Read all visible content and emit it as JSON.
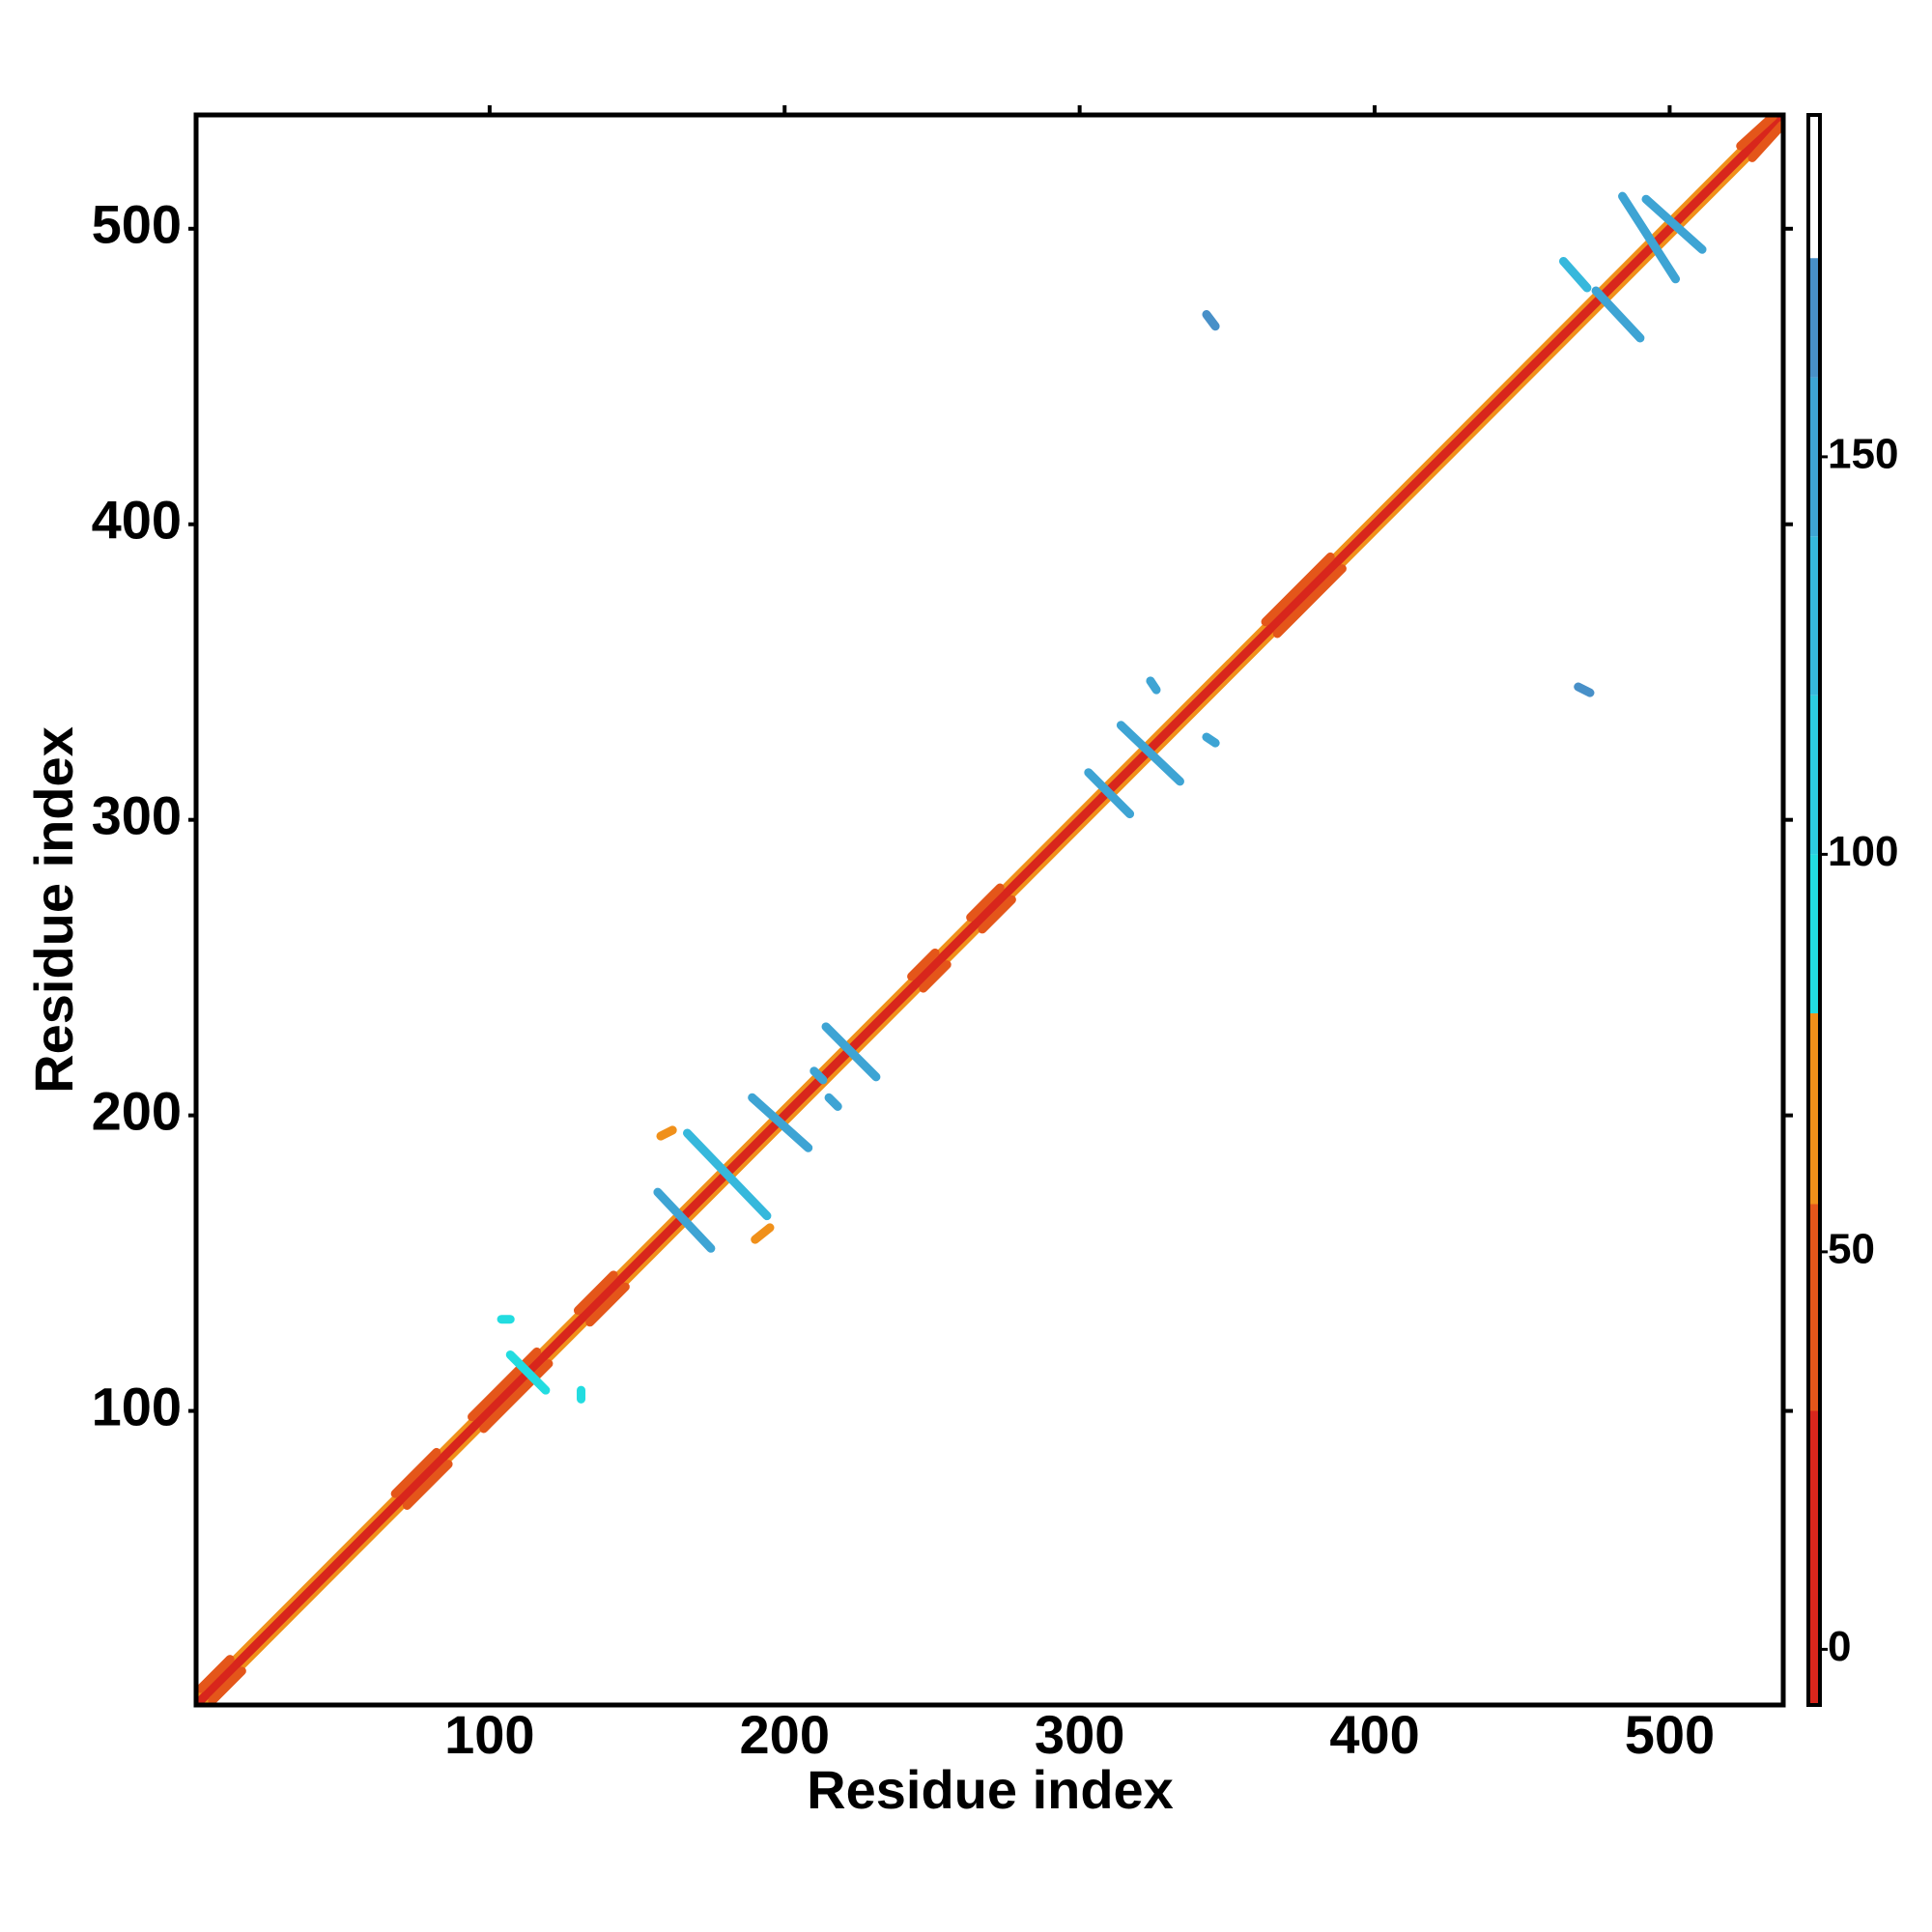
{
  "chart_data": {
    "type": "heatmap",
    "x_label": "Residue index",
    "y_label": "Residue index",
    "xlim": [
      0.5,
      538.5
    ],
    "ylim": [
      0.5,
      538.5
    ],
    "xticks": [
      100,
      200,
      300,
      400,
      500
    ],
    "yticks": [
      100,
      200,
      300,
      400,
      500
    ],
    "clim": [
      -7,
      193
    ],
    "cticks": [
      0,
      50,
      100,
      150
    ],
    "colormap": [
      {
        "value": -7,
        "color": "#d8261c"
      },
      {
        "value": 30,
        "color": "#e4561a"
      },
      {
        "value": 56,
        "color": "#f0901a"
      },
      {
        "value": 80,
        "color": "#22dce0"
      },
      {
        "value": 100,
        "color": "#2ccce0"
      },
      {
        "value": 120,
        "color": "#36b8dc"
      },
      {
        "value": 140,
        "color": "#3ea4d4"
      },
      {
        "value": 160,
        "color": "#4890c8"
      },
      {
        "value": 175,
        "color": "#ffffff"
      }
    ],
    "contacts": [
      {
        "x": [
          1,
          536
        ],
        "y": [
          3,
          538
        ],
        "value": 65
      },
      {
        "x": [
          3,
          538
        ],
        "y": [
          1,
          536
        ],
        "value": 65
      },
      {
        "x": [
          1,
          538
        ],
        "y": [
          1,
          538
        ],
        "value": 5
      },
      {
        "x": [
          2,
          12
        ],
        "y": [
          6,
          16
        ],
        "value": 40
      },
      {
        "x": [
          6,
          16
        ],
        "y": [
          2,
          12
        ],
        "value": 40
      },
      {
        "x": [
          68,
          82
        ],
        "y": [
          72,
          86
        ],
        "value": 40
      },
      {
        "x": [
          72,
          86
        ],
        "y": [
          68,
          82
        ],
        "value": 40
      },
      {
        "x": [
          94,
          116
        ],
        "y": [
          98,
          120
        ],
        "value": 40
      },
      {
        "x": [
          98,
          120
        ],
        "y": [
          94,
          116
        ],
        "value": 40
      },
      {
        "x": [
          130,
          142
        ],
        "y": [
          134,
          146
        ],
        "value": 40
      },
      {
        "x": [
          134,
          146
        ],
        "y": [
          130,
          142
        ],
        "value": 40
      },
      {
        "x": [
          243,
          251
        ],
        "y": [
          247,
          255
        ],
        "value": 40
      },
      {
        "x": [
          247,
          255
        ],
        "y": [
          243,
          251
        ],
        "value": 40
      },
      {
        "x": [
          263,
          273
        ],
        "y": [
          267,
          277
        ],
        "value": 40
      },
      {
        "x": [
          267,
          277
        ],
        "y": [
          263,
          273
        ],
        "value": 40
      },
      {
        "x": [
          363,
          385
        ],
        "y": [
          367,
          389
        ],
        "value": 40
      },
      {
        "x": [
          367,
          389
        ],
        "y": [
          363,
          385
        ],
        "value": 40
      },
      {
        "x": [
          524,
          535
        ],
        "y": [
          528,
          538
        ],
        "value": 40
      },
      {
        "x": [
          528,
          538
        ],
        "y": [
          524,
          535
        ],
        "value": 40
      },
      {
        "x": [
          107,
          119
        ],
        "y": [
          119,
          107
        ],
        "value": 95
      },
      {
        "x": [
          104,
          107
        ],
        "y": [
          131,
          131
        ],
        "value": 95
      },
      {
        "x": [
          131,
          131
        ],
        "y": [
          104,
          107
        ],
        "value": 95
      },
      {
        "x": [
          157,
          175
        ],
        "y": [
          174,
          155
        ],
        "value": 145
      },
      {
        "x": [
          167,
          194
        ],
        "y": [
          194,
          166
        ],
        "value": 135
      },
      {
        "x": [
          189,
          208
        ],
        "y": [
          206,
          189
        ],
        "value": 140
      },
      {
        "x": [
          214,
          231
        ],
        "y": [
          230,
          213
        ],
        "value": 140
      },
      {
        "x": [
          210,
          213
        ],
        "y": [
          215,
          212
        ],
        "value": 155
      },
      {
        "x": [
          215,
          218
        ],
        "y": [
          206,
          203
        ],
        "value": 155
      },
      {
        "x": [
          303,
          317
        ],
        "y": [
          316,
          302
        ],
        "value": 140
      },
      {
        "x": [
          314,
          334
        ],
        "y": [
          332,
          313
        ],
        "value": 145
      },
      {
        "x": [
          324,
          326
        ],
        "y": [
          347,
          344
        ],
        "value": 150
      },
      {
        "x": [
          343,
          346
        ],
        "y": [
          328,
          326
        ],
        "value": 150
      },
      {
        "x": [
          343,
          346
        ],
        "y": [
          471,
          467
        ],
        "value": 160
      },
      {
        "x": [
          469,
          473
        ],
        "y": [
          345,
          343
        ],
        "value": 160
      },
      {
        "x": [
          464,
          472
        ],
        "y": [
          489,
          480
        ],
        "value": 130
      },
      {
        "x": [
          475,
          490
        ],
        "y": [
          479,
          463
        ],
        "value": 145
      },
      {
        "x": [
          484,
          502
        ],
        "y": [
          511,
          483
        ],
        "value": 145
      },
      {
        "x": [
          492,
          511
        ],
        "y": [
          510,
          493
        ],
        "value": 150
      },
      {
        "x": [
          158,
          162
        ],
        "y": [
          193,
          195
        ],
        "value": 60
      },
      {
        "x": [
          190,
          195
        ],
        "y": [
          158,
          162
        ],
        "value": 60
      }
    ]
  }
}
